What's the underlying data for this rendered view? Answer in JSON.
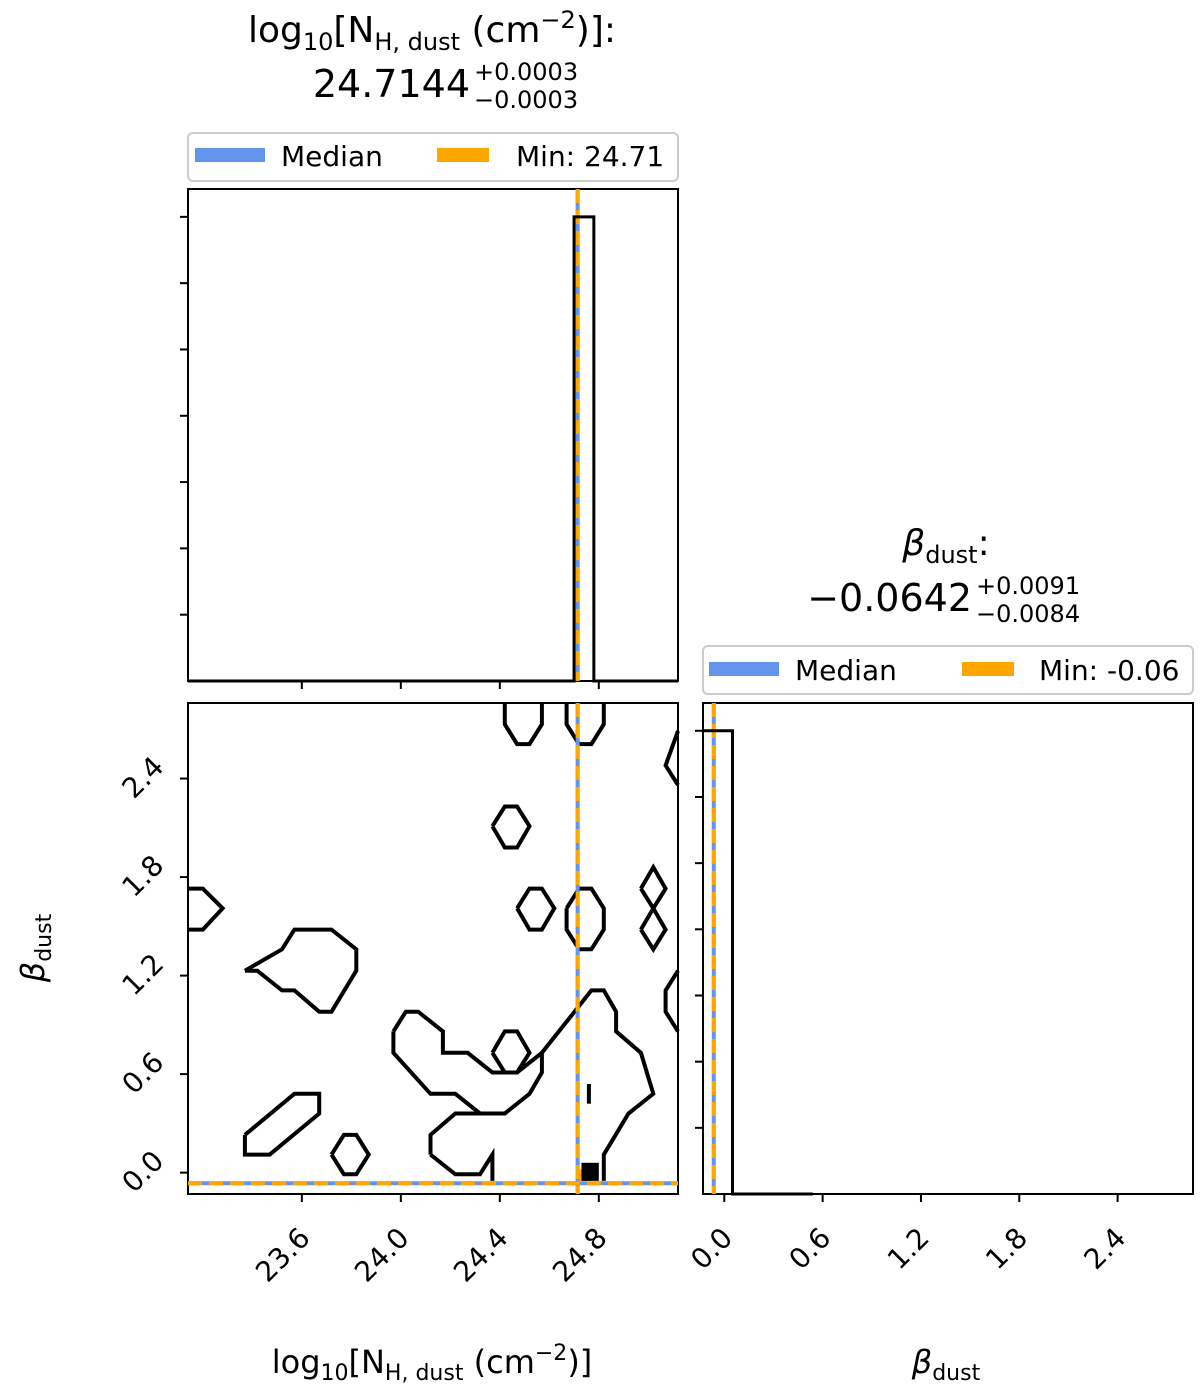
{
  "chart_data": {
    "type": "corner",
    "params": [
      {
        "id": "nh",
        "label_base": "log",
        "label_log_sub": "10",
        "label_open": "[N",
        "label_sub": "H, dust",
        "label_unit": " (cm",
        "label_unit_sup": "−2",
        "label_close": ")]",
        "title_colon": ":",
        "median_text": "24.7144",
        "err_plus": "+0.0003",
        "err_minus": "−0.0003",
        "median": 24.7144,
        "min_value": 24.71,
        "xlim": [
          23.14,
          25.12
        ],
        "ticks": [
          23.6,
          24.0,
          24.4,
          24.8
        ],
        "tick_labels": [
          "23.6",
          "24.0",
          "24.4",
          "24.8"
        ],
        "histogram": {
          "bin_edges": [
            23.14,
            24.7,
            24.78,
            25.12
          ],
          "counts": [
            0,
            1.0,
            0
          ],
          "ylim": [
            0,
            1.06
          ]
        },
        "legend": {
          "median_label": "Median",
          "min_label": "Min: 24.71"
        }
      },
      {
        "id": "beta",
        "label_symbol": "β",
        "label_sub": "dust",
        "title_colon": ":",
        "median_text": "−0.0642",
        "err_plus": "+0.0091",
        "err_minus": "−0.0084",
        "median": -0.0642,
        "min_value": -0.06,
        "xlim": [
          -0.13,
          2.86
        ],
        "ticks": [
          0.0,
          0.6,
          1.2,
          1.8,
          2.4
        ],
        "tick_labels": [
          "0.0",
          "0.6",
          "1.2",
          "1.8",
          "2.4"
        ],
        "histogram": {
          "bin_edges": [
            -0.13,
            -0.05,
            0.05,
            0.54,
            2.86
          ],
          "counts": [
            1.0,
            1.0,
            0.0,
            0
          ],
          "ylim": [
            0,
            1.06
          ]
        },
        "legend": {
          "median_label": "Median",
          "min_label": "Min: -0.06"
        }
      }
    ],
    "contours_2d": {
      "x_param": "nh",
      "y_param": "beta",
      "paths": [
        [
          [
            23.14,
            1.73
          ],
          [
            23.2,
            1.73
          ],
          [
            23.28,
            1.61
          ],
          [
            23.2,
            1.48
          ],
          [
            23.14,
            1.48
          ]
        ],
        [
          [
            23.37,
            0.23
          ],
          [
            23.57,
            0.48
          ],
          [
            23.67,
            0.48
          ],
          [
            23.67,
            0.36
          ],
          [
            23.47,
            0.11
          ],
          [
            23.37,
            0.11
          ],
          [
            23.37,
            0.23
          ]
        ],
        [
          [
            23.72,
            0.11
          ],
          [
            23.77,
            0.23
          ],
          [
            23.82,
            0.23
          ],
          [
            23.87,
            0.11
          ],
          [
            23.82,
            -0.01
          ],
          [
            23.77,
            -0.01
          ],
          [
            23.72,
            0.11
          ]
        ],
        [
          [
            23.37,
            1.23
          ],
          [
            23.52,
            1.36
          ],
          [
            23.57,
            1.48
          ],
          [
            23.72,
            1.48
          ],
          [
            23.82,
            1.36
          ],
          [
            23.82,
            1.23
          ],
          [
            23.72,
            0.98
          ],
          [
            23.67,
            0.98
          ],
          [
            23.57,
            1.11
          ],
          [
            23.52,
            1.11
          ],
          [
            23.42,
            1.23
          ],
          [
            23.37,
            1.23
          ]
        ],
        [
          [
            23.97,
            0.86
          ],
          [
            24.02,
            0.98
          ],
          [
            24.07,
            0.98
          ],
          [
            24.17,
            0.86
          ],
          [
            24.17,
            0.73
          ],
          [
            24.27,
            0.73
          ],
          [
            24.37,
            0.61
          ],
          [
            24.47,
            0.61
          ],
          [
            24.57,
            0.73
          ],
          [
            24.77,
            1.11
          ],
          [
            24.82,
            1.11
          ],
          [
            24.87,
            0.98
          ],
          [
            24.87,
            0.86
          ],
          [
            24.97,
            0.73
          ],
          [
            25.02,
            0.48
          ],
          [
            24.92,
            0.36
          ],
          [
            24.82,
            0.11
          ],
          [
            24.82,
            -0.05
          ]
        ],
        [
          [
            23.97,
            0.86
          ],
          [
            23.97,
            0.73
          ],
          [
            24.12,
            0.48
          ],
          [
            24.22,
            0.48
          ],
          [
            24.32,
            0.36
          ],
          [
            24.42,
            0.36
          ],
          [
            24.52,
            0.48
          ],
          [
            24.57,
            0.61
          ],
          [
            24.57,
            0.73
          ]
        ],
        [
          [
            24.12,
            0.11
          ],
          [
            24.12,
            0.23
          ],
          [
            24.22,
            0.36
          ],
          [
            24.37,
            0.36
          ]
        ],
        [
          [
            24.12,
            0.11
          ],
          [
            24.22,
            -0.01
          ],
          [
            24.32,
            -0.01
          ],
          [
            24.37,
            0.11
          ],
          [
            24.37,
            -0.05
          ]
        ],
        [
          [
            24.37,
            0.73
          ],
          [
            24.42,
            0.86
          ],
          [
            24.47,
            0.86
          ],
          [
            24.52,
            0.73
          ],
          [
            24.47,
            0.61
          ],
          [
            24.42,
            0.61
          ],
          [
            24.37,
            0.73
          ]
        ],
        [
          [
            24.37,
            2.11
          ],
          [
            24.42,
            2.23
          ],
          [
            24.47,
            2.23
          ],
          [
            24.52,
            2.11
          ],
          [
            24.47,
            1.98
          ],
          [
            24.42,
            1.98
          ],
          [
            24.37,
            2.11
          ]
        ],
        [
          [
            24.47,
            1.61
          ],
          [
            24.52,
            1.73
          ],
          [
            24.57,
            1.73
          ],
          [
            24.62,
            1.61
          ],
          [
            24.57,
            1.48
          ],
          [
            24.52,
            1.48
          ],
          [
            24.47,
            1.61
          ]
        ],
        [
          [
            24.42,
            2.86
          ],
          [
            24.42,
            2.73
          ],
          [
            24.47,
            2.61
          ],
          [
            24.52,
            2.61
          ],
          [
            24.57,
            2.73
          ],
          [
            24.57,
            2.86
          ]
        ],
        [
          [
            24.67,
            2.86
          ],
          [
            24.67,
            2.73
          ],
          [
            24.72,
            2.61
          ],
          [
            24.77,
            2.61
          ],
          [
            24.82,
            2.73
          ],
          [
            24.82,
            2.86
          ]
        ],
        [
          [
            24.67,
            1.61
          ],
          [
            24.72,
            1.73
          ],
          [
            24.77,
            1.73
          ],
          [
            24.82,
            1.61
          ],
          [
            24.82,
            1.48
          ],
          [
            24.77,
            1.36
          ],
          [
            24.72,
            1.36
          ],
          [
            24.67,
            1.48
          ],
          [
            24.67,
            1.61
          ]
        ],
        [
          [
            24.97,
            1.73
          ],
          [
            25.02,
            1.86
          ],
          [
            25.07,
            1.73
          ],
          [
            25.02,
            1.61
          ],
          [
            24.97,
            1.73
          ]
        ],
        [
          [
            24.97,
            1.48
          ],
          [
            25.02,
            1.61
          ],
          [
            25.07,
            1.48
          ],
          [
            25.02,
            1.36
          ],
          [
            24.97,
            1.48
          ]
        ],
        [
          [
            25.12,
            2.69
          ],
          [
            25.07,
            2.48
          ],
          [
            25.12,
            2.36
          ]
        ],
        [
          [
            25.12,
            1.23
          ],
          [
            25.07,
            1.11
          ],
          [
            25.07,
            0.98
          ],
          [
            25.12,
            0.86
          ]
        ],
        [
          [
            24.76,
            0.54
          ],
          [
            24.76,
            0.42
          ]
        ]
      ],
      "filled_blocks": [
        {
          "x": [
            24.71,
            24.77
          ],
          "y": [
            -0.05,
            0.02
          ],
          "color": "#ffa500"
        },
        {
          "x": [
            24.73,
            24.8
          ],
          "y": [
            -0.05,
            0.06
          ],
          "color": "#000000"
        }
      ]
    },
    "colors": {
      "median": "#6495ed",
      "min": "#ffa500",
      "lines": "#000000",
      "background": "#ffffff"
    },
    "grid": false
  }
}
